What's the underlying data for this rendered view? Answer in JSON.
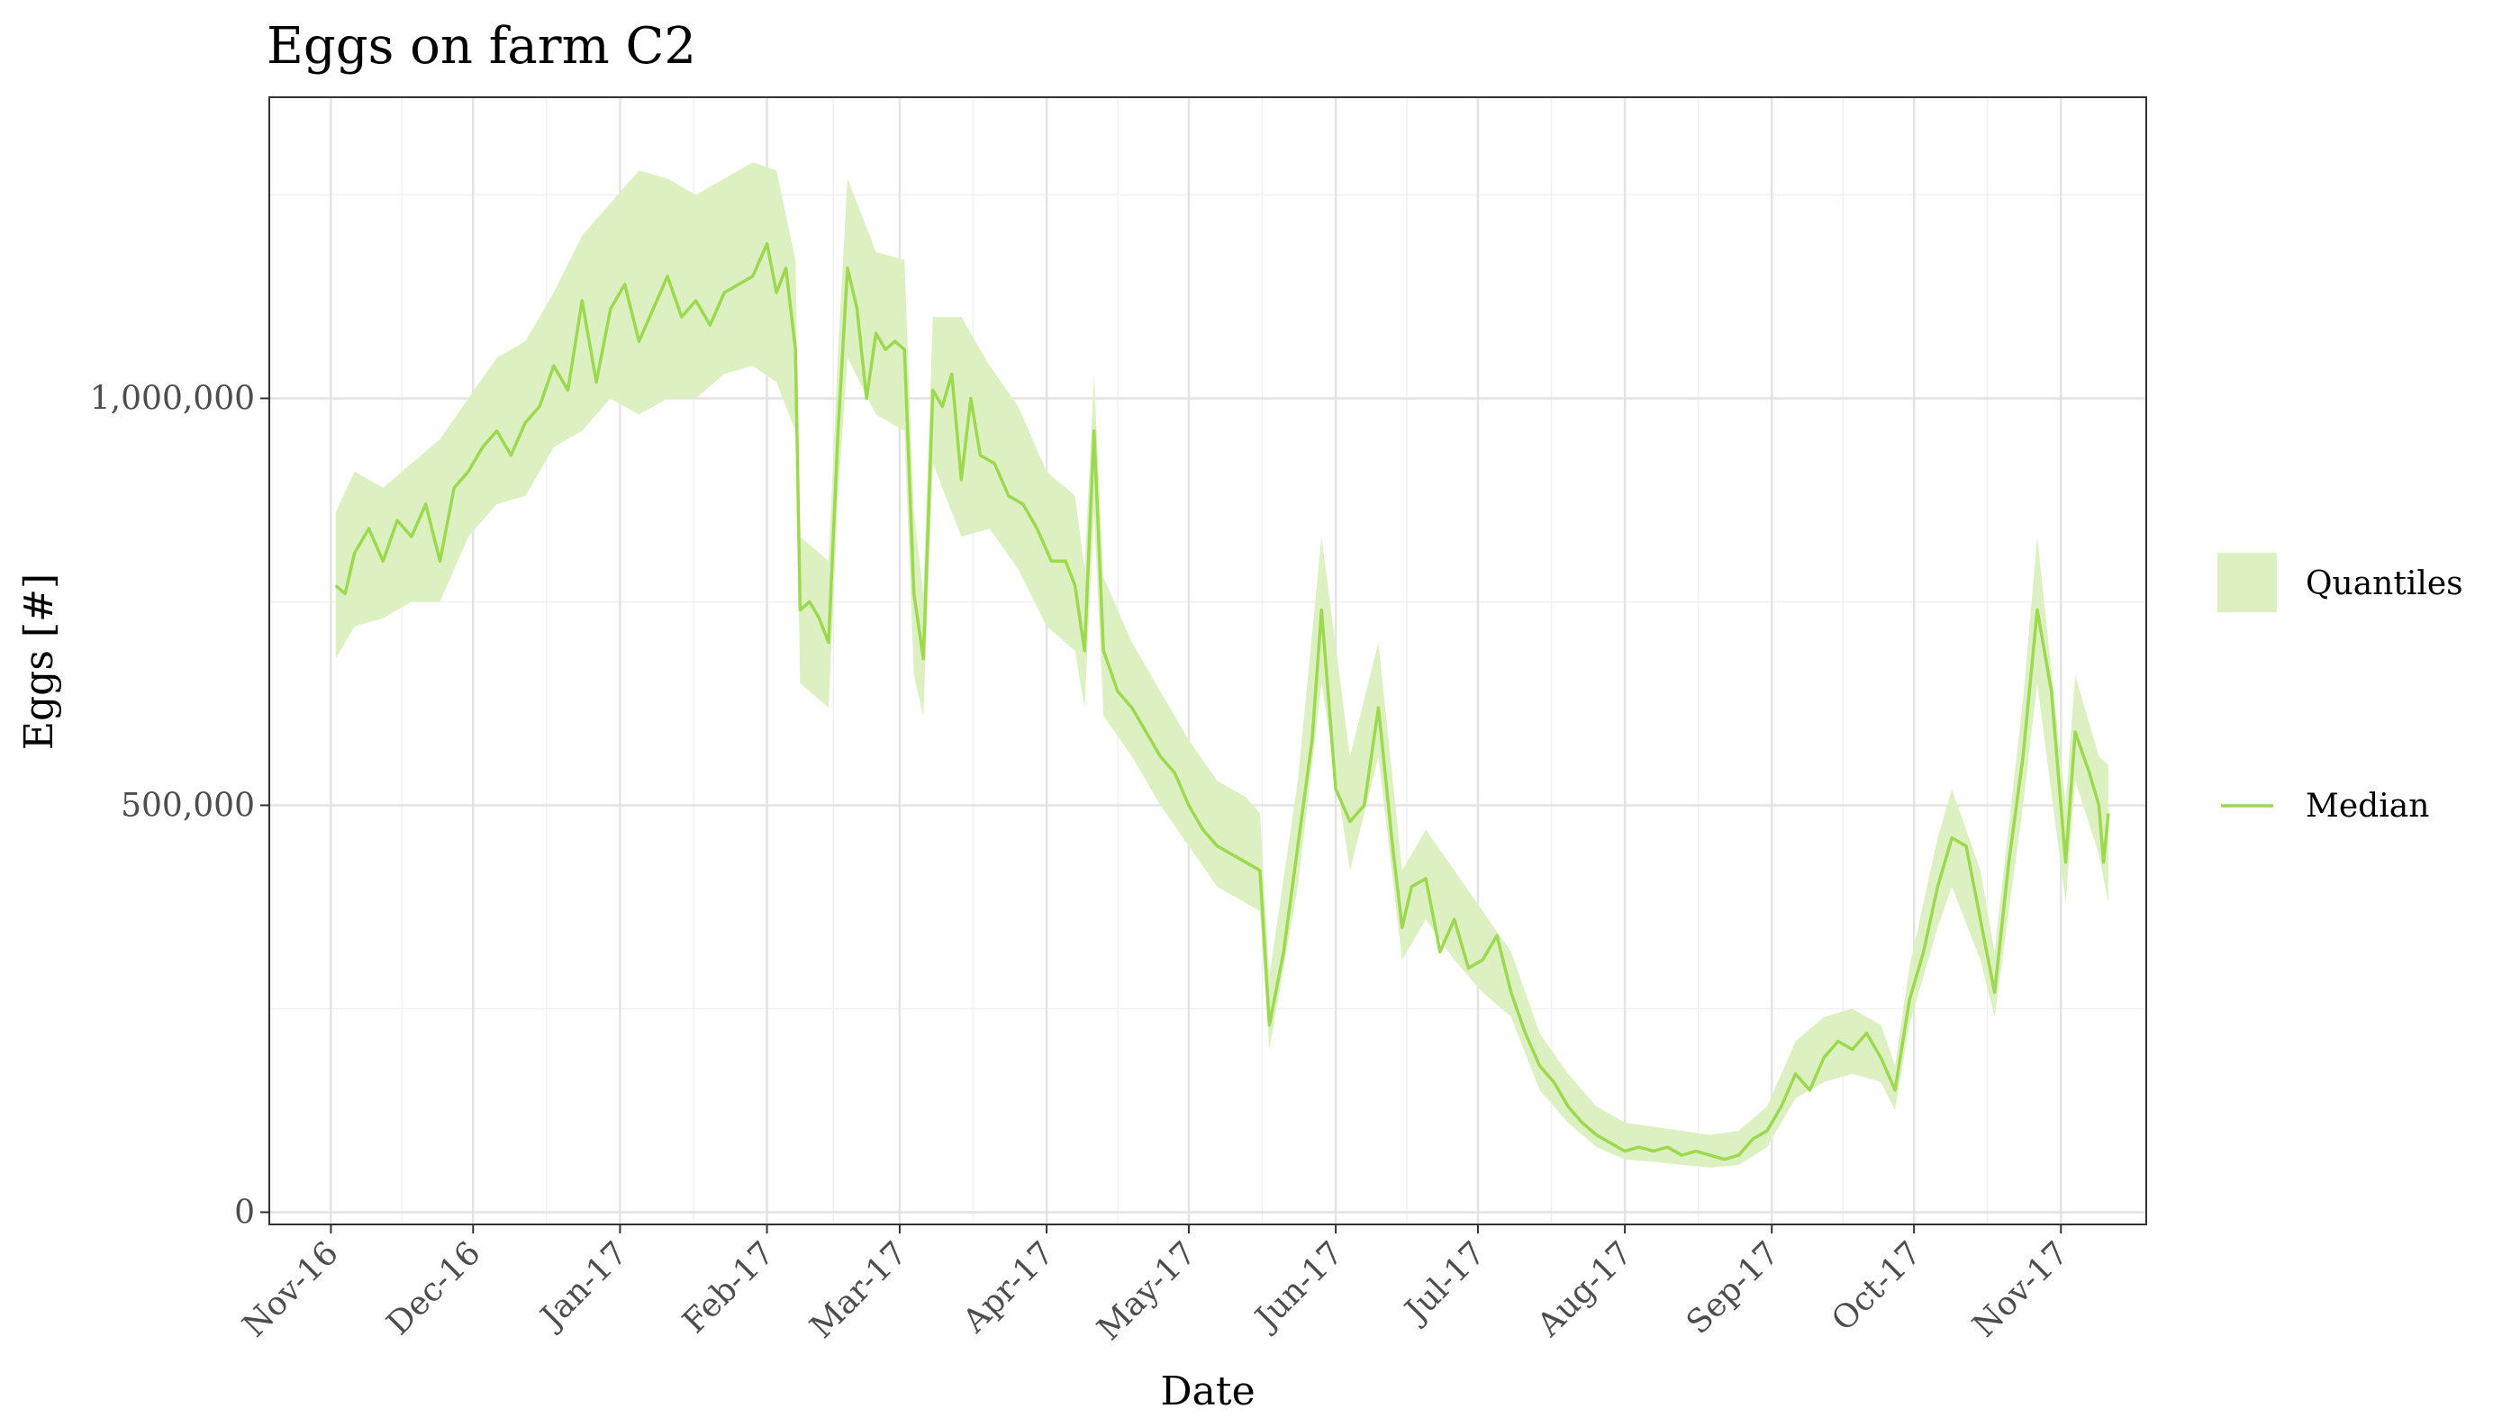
{
  "chart_data": {
    "type": "area",
    "title": "Eggs on farm C2",
    "xlabel": "Date",
    "ylabel": "Eggs [#]",
    "x_ticks": [
      "Nov-16",
      "Dec-16",
      "Jan-17",
      "Feb-17",
      "Mar-17",
      "Apr-17",
      "May-17",
      "Jun-17",
      "Jul-17",
      "Aug-17",
      "Sep-17",
      "Oct-17",
      "Nov-17"
    ],
    "y_ticks": [
      0,
      500000,
      1000000
    ],
    "y_tick_labels": [
      "0",
      "500,000",
      "1,000,000"
    ],
    "ylim": [
      -15000,
      1370000
    ],
    "xlim": [
      "2016-10-19",
      "2017-11-19"
    ],
    "grid": true,
    "legend_position": "right",
    "legend": [
      {
        "label": "Quantiles",
        "kind": "band"
      },
      {
        "label": "Median",
        "kind": "line"
      }
    ],
    "colors": {
      "median": "#9cd94f",
      "quantile_band": "#dcf0c2"
    },
    "series": [
      {
        "name": "Median",
        "points": [
          [
            "2016-11-02",
            770000
          ],
          [
            "2016-11-04",
            760000
          ],
          [
            "2016-11-06",
            810000
          ],
          [
            "2016-11-09",
            840000
          ],
          [
            "2016-11-12",
            800000
          ],
          [
            "2016-11-15",
            850000
          ],
          [
            "2016-11-18",
            830000
          ],
          [
            "2016-11-21",
            870000
          ],
          [
            "2016-11-24",
            800000
          ],
          [
            "2016-11-27",
            890000
          ],
          [
            "2016-11-30",
            910000
          ],
          [
            "2016-12-03",
            940000
          ],
          [
            "2016-12-06",
            960000
          ],
          [
            "2016-12-09",
            930000
          ],
          [
            "2016-12-12",
            970000
          ],
          [
            "2016-12-15",
            990000
          ],
          [
            "2016-12-18",
            1040000
          ],
          [
            "2016-12-21",
            1010000
          ],
          [
            "2016-12-24",
            1120000
          ],
          [
            "2016-12-27",
            1020000
          ],
          [
            "2016-12-30",
            1110000
          ],
          [
            "2017-01-02",
            1140000
          ],
          [
            "2017-01-05",
            1070000
          ],
          [
            "2017-01-08",
            1110000
          ],
          [
            "2017-01-11",
            1150000
          ],
          [
            "2017-01-14",
            1100000
          ],
          [
            "2017-01-17",
            1120000
          ],
          [
            "2017-01-20",
            1090000
          ],
          [
            "2017-01-23",
            1130000
          ],
          [
            "2017-01-26",
            1140000
          ],
          [
            "2017-01-29",
            1150000
          ],
          [
            "2017-02-01",
            1190000
          ],
          [
            "2017-02-03",
            1130000
          ],
          [
            "2017-02-05",
            1160000
          ],
          [
            "2017-02-07",
            1060000
          ],
          [
            "2017-02-08",
            740000
          ],
          [
            "2017-02-10",
            750000
          ],
          [
            "2017-02-12",
            730000
          ],
          [
            "2017-02-14",
            700000
          ],
          [
            "2017-02-16",
            960000
          ],
          [
            "2017-02-18",
            1160000
          ],
          [
            "2017-02-20",
            1110000
          ],
          [
            "2017-02-22",
            1000000
          ],
          [
            "2017-02-24",
            1080000
          ],
          [
            "2017-02-26",
            1060000
          ],
          [
            "2017-02-28",
            1070000
          ],
          [
            "2017-03-02",
            1060000
          ],
          [
            "2017-03-04",
            760000
          ],
          [
            "2017-03-06",
            680000
          ],
          [
            "2017-03-08",
            1010000
          ],
          [
            "2017-03-10",
            990000
          ],
          [
            "2017-03-12",
            1030000
          ],
          [
            "2017-03-14",
            900000
          ],
          [
            "2017-03-16",
            1000000
          ],
          [
            "2017-03-18",
            930000
          ],
          [
            "2017-03-21",
            920000
          ],
          [
            "2017-03-24",
            880000
          ],
          [
            "2017-03-27",
            870000
          ],
          [
            "2017-03-30",
            840000
          ],
          [
            "2017-04-02",
            800000
          ],
          [
            "2017-04-05",
            800000
          ],
          [
            "2017-04-07",
            770000
          ],
          [
            "2017-04-09",
            690000
          ],
          [
            "2017-04-11",
            960000
          ],
          [
            "2017-04-13",
            690000
          ],
          [
            "2017-04-16",
            640000
          ],
          [
            "2017-04-19",
            620000
          ],
          [
            "2017-04-22",
            590000
          ],
          [
            "2017-04-25",
            560000
          ],
          [
            "2017-04-28",
            540000
          ],
          [
            "2017-05-01",
            500000
          ],
          [
            "2017-05-04",
            470000
          ],
          [
            "2017-05-07",
            450000
          ],
          [
            "2017-05-10",
            440000
          ],
          [
            "2017-05-13",
            430000
          ],
          [
            "2017-05-16",
            420000
          ],
          [
            "2017-05-18",
            230000
          ],
          [
            "2017-05-21",
            320000
          ],
          [
            "2017-05-24",
            450000
          ],
          [
            "2017-05-27",
            580000
          ],
          [
            "2017-05-29",
            740000
          ],
          [
            "2017-06-01",
            520000
          ],
          [
            "2017-06-04",
            480000
          ],
          [
            "2017-06-07",
            500000
          ],
          [
            "2017-06-10",
            620000
          ],
          [
            "2017-06-13",
            450000
          ],
          [
            "2017-06-15",
            350000
          ],
          [
            "2017-06-17",
            400000
          ],
          [
            "2017-06-20",
            410000
          ],
          [
            "2017-06-23",
            320000
          ],
          [
            "2017-06-26",
            360000
          ],
          [
            "2017-06-29",
            300000
          ],
          [
            "2017-07-02",
            310000
          ],
          [
            "2017-07-05",
            340000
          ],
          [
            "2017-07-08",
            270000
          ],
          [
            "2017-07-11",
            220000
          ],
          [
            "2017-07-14",
            180000
          ],
          [
            "2017-07-17",
            160000
          ],
          [
            "2017-07-20",
            130000
          ],
          [
            "2017-07-23",
            110000
          ],
          [
            "2017-07-26",
            95000
          ],
          [
            "2017-07-29",
            85000
          ],
          [
            "2017-08-01",
            75000
          ],
          [
            "2017-08-04",
            80000
          ],
          [
            "2017-08-07",
            75000
          ],
          [
            "2017-08-10",
            80000
          ],
          [
            "2017-08-13",
            70000
          ],
          [
            "2017-08-16",
            75000
          ],
          [
            "2017-08-19",
            70000
          ],
          [
            "2017-08-22",
            65000
          ],
          [
            "2017-08-25",
            70000
          ],
          [
            "2017-08-28",
            90000
          ],
          [
            "2017-08-31",
            100000
          ],
          [
            "2017-09-03",
            130000
          ],
          [
            "2017-09-06",
            170000
          ],
          [
            "2017-09-09",
            150000
          ],
          [
            "2017-09-12",
            190000
          ],
          [
            "2017-09-15",
            210000
          ],
          [
            "2017-09-18",
            200000
          ],
          [
            "2017-09-21",
            220000
          ],
          [
            "2017-09-24",
            190000
          ],
          [
            "2017-09-27",
            150000
          ],
          [
            "2017-09-30",
            260000
          ],
          [
            "2017-10-03",
            320000
          ],
          [
            "2017-10-06",
            400000
          ],
          [
            "2017-10-09",
            460000
          ],
          [
            "2017-10-12",
            450000
          ],
          [
            "2017-10-15",
            360000
          ],
          [
            "2017-10-18",
            270000
          ],
          [
            "2017-10-21",
            430000
          ],
          [
            "2017-10-24",
            560000
          ],
          [
            "2017-10-27",
            740000
          ],
          [
            "2017-10-30",
            640000
          ],
          [
            "2017-11-02",
            430000
          ],
          [
            "2017-11-04",
            590000
          ],
          [
            "2017-11-07",
            540000
          ],
          [
            "2017-11-09",
            500000
          ],
          [
            "2017-11-10",
            430000
          ],
          [
            "2017-11-11",
            490000
          ]
        ]
      },
      {
        "name": "Quantiles",
        "points_low_high": [
          [
            "2016-11-02",
            680000,
            860000
          ],
          [
            "2016-11-06",
            720000,
            910000
          ],
          [
            "2016-11-12",
            730000,
            890000
          ],
          [
            "2016-11-18",
            750000,
            920000
          ],
          [
            "2016-11-24",
            750000,
            950000
          ],
          [
            "2016-11-30",
            830000,
            1000000
          ],
          [
            "2016-12-06",
            870000,
            1050000
          ],
          [
            "2016-12-12",
            880000,
            1070000
          ],
          [
            "2016-12-18",
            940000,
            1130000
          ],
          [
            "2016-12-24",
            960000,
            1200000
          ],
          [
            "2016-12-30",
            1000000,
            1240000
          ],
          [
            "2017-01-05",
            980000,
            1280000
          ],
          [
            "2017-01-11",
            1000000,
            1270000
          ],
          [
            "2017-01-17",
            1000000,
            1250000
          ],
          [
            "2017-01-23",
            1030000,
            1270000
          ],
          [
            "2017-01-29",
            1040000,
            1290000
          ],
          [
            "2017-02-03",
            1020000,
            1280000
          ],
          [
            "2017-02-07",
            960000,
            1170000
          ],
          [
            "2017-02-08",
            650000,
            830000
          ],
          [
            "2017-02-14",
            620000,
            800000
          ],
          [
            "2017-02-16",
            880000,
            1060000
          ],
          [
            "2017-02-18",
            1050000,
            1270000
          ],
          [
            "2017-02-24",
            980000,
            1180000
          ],
          [
            "2017-03-02",
            960000,
            1170000
          ],
          [
            "2017-03-04",
            660000,
            860000
          ],
          [
            "2017-03-06",
            610000,
            760000
          ],
          [
            "2017-03-08",
            920000,
            1100000
          ],
          [
            "2017-03-14",
            830000,
            1100000
          ],
          [
            "2017-03-20",
            840000,
            1040000
          ],
          [
            "2017-03-26",
            790000,
            990000
          ],
          [
            "2017-04-01",
            720000,
            910000
          ],
          [
            "2017-04-07",
            690000,
            880000
          ],
          [
            "2017-04-09",
            620000,
            790000
          ],
          [
            "2017-04-11",
            860000,
            1030000
          ],
          [
            "2017-04-13",
            610000,
            780000
          ],
          [
            "2017-04-19",
            560000,
            700000
          ],
          [
            "2017-04-25",
            500000,
            640000
          ],
          [
            "2017-05-01",
            450000,
            580000
          ],
          [
            "2017-05-07",
            400000,
            530000
          ],
          [
            "2017-05-13",
            380000,
            510000
          ],
          [
            "2017-05-16",
            370000,
            490000
          ],
          [
            "2017-05-18",
            200000,
            290000
          ],
          [
            "2017-05-24",
            400000,
            530000
          ],
          [
            "2017-05-29",
            650000,
            830000
          ],
          [
            "2017-06-04",
            420000,
            560000
          ],
          [
            "2017-06-10",
            560000,
            700000
          ],
          [
            "2017-06-15",
            310000,
            420000
          ],
          [
            "2017-06-20",
            360000,
            470000
          ],
          [
            "2017-06-26",
            310000,
            420000
          ],
          [
            "2017-07-02",
            270000,
            370000
          ],
          [
            "2017-07-08",
            240000,
            320000
          ],
          [
            "2017-07-14",
            150000,
            220000
          ],
          [
            "2017-07-20",
            110000,
            170000
          ],
          [
            "2017-07-26",
            80000,
            130000
          ],
          [
            "2017-08-01",
            65000,
            110000
          ],
          [
            "2017-08-07",
            62000,
            105000
          ],
          [
            "2017-08-13",
            58000,
            100000
          ],
          [
            "2017-08-19",
            55000,
            95000
          ],
          [
            "2017-08-25",
            58000,
            100000
          ],
          [
            "2017-08-31",
            80000,
            130000
          ],
          [
            "2017-09-06",
            140000,
            210000
          ],
          [
            "2017-09-12",
            160000,
            240000
          ],
          [
            "2017-09-18",
            170000,
            250000
          ],
          [
            "2017-09-24",
            160000,
            230000
          ],
          [
            "2017-09-27",
            125000,
            180000
          ],
          [
            "2017-09-30",
            230000,
            300000
          ],
          [
            "2017-10-06",
            350000,
            460000
          ],
          [
            "2017-10-09",
            400000,
            520000
          ],
          [
            "2017-10-15",
            310000,
            420000
          ],
          [
            "2017-10-18",
            240000,
            320000
          ],
          [
            "2017-10-24",
            500000,
            630000
          ],
          [
            "2017-10-27",
            650000,
            830000
          ],
          [
            "2017-11-02",
            380000,
            500000
          ],
          [
            "2017-11-04",
            530000,
            660000
          ],
          [
            "2017-11-09",
            440000,
            560000
          ],
          [
            "2017-11-11",
            380000,
            550000
          ]
        ]
      }
    ]
  }
}
